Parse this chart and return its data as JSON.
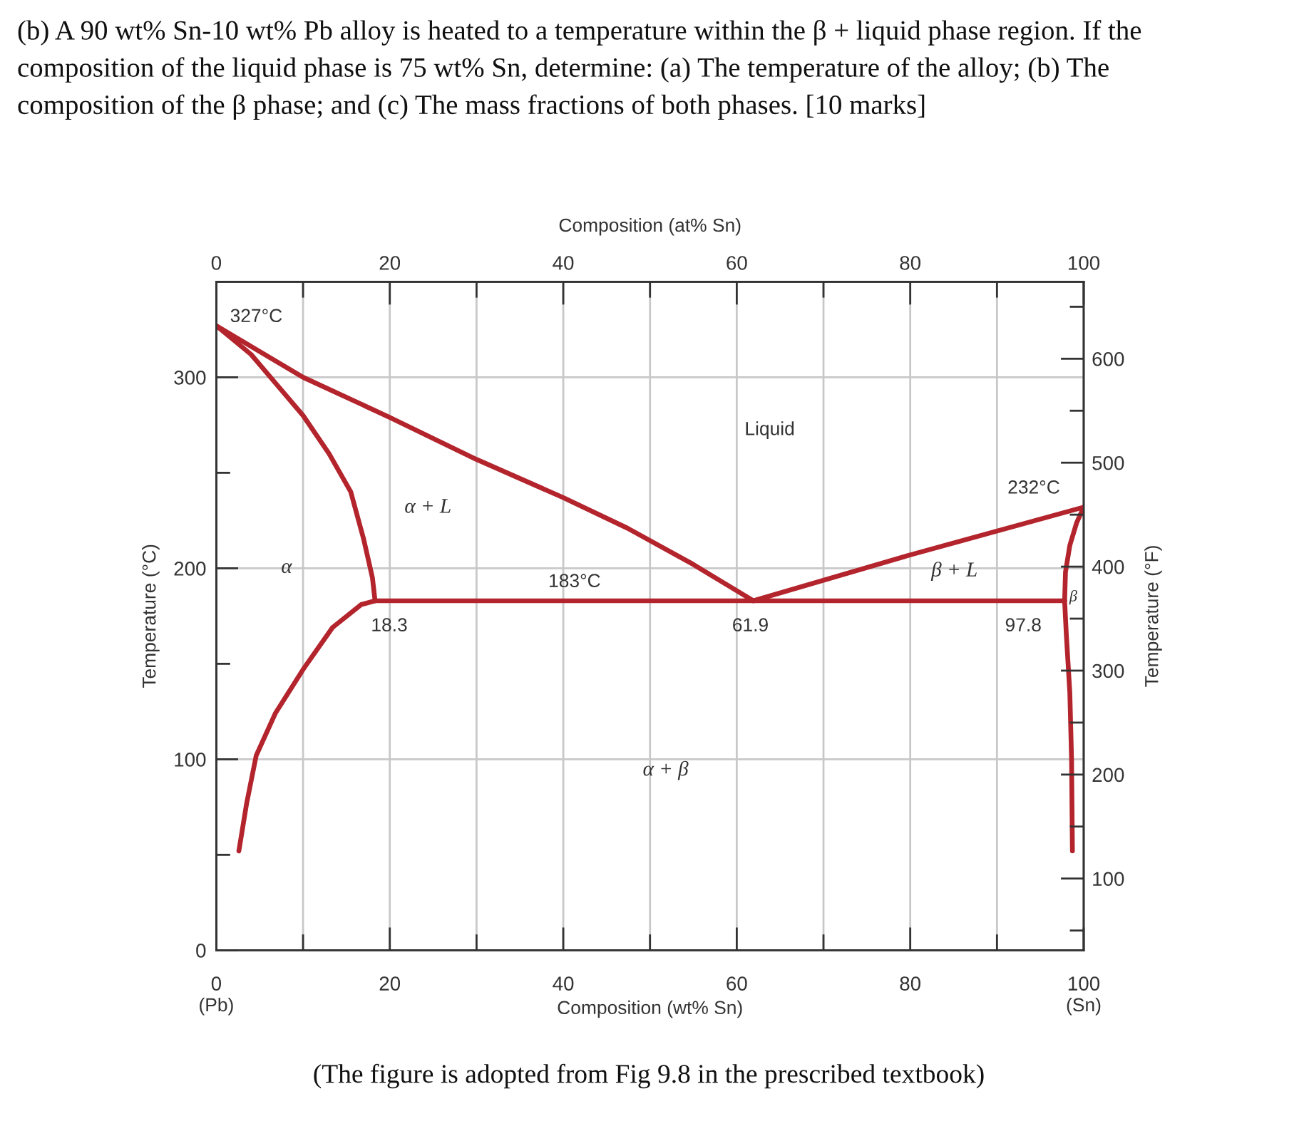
{
  "chart_data": {
    "type": "line",
    "title": "(b) A 90 wt% Sn-10 wt% Pb alloy is heated to a temperature within the β + liquid phase region. If the composition of the liquid phase is 75 wt% Sn, determine: (a) The temperature of the alloy; (b) The composition of the β phase; and (c) The mass fractions of both phases. [10 marks]",
    "xlabel": "Composition (wt% Sn)",
    "ylabel": "Temperature (°C)",
    "y2label": "Temperature (°F)",
    "x2label": "Composition (at% Sn)",
    "xlim": [
      0,
      100
    ],
    "xticks": [
      0,
      {
        "value": 10,
        "label": null
      },
      20,
      {
        "value": 30,
        "label": null
      },
      40,
      {
        "value": 50,
        "label": null
      },
      60,
      {
        "value": 70,
        "label": null
      },
      80,
      {
        "value": 90,
        "label": null
      },
      100
    ],
    "ylim": [
      0,
      350
    ],
    "yticks": [
      0,
      {
        "value": 50,
        "label": null
      },
      100,
      {
        "value": 150,
        "label": null
      },
      200,
      {
        "value": 250,
        "label": null
      },
      300
    ],
    "y2lim": [
      31,
      674
    ],
    "y2ticks": [
      {
        "value": 50,
        "label": null
      },
      100,
      {
        "value": 150,
        "label": null
      },
      200,
      {
        "value": 250,
        "label": null
      },
      300,
      {
        "value": 350,
        "label": null
      },
      400,
      {
        "value": 450,
        "label": null
      },
      500,
      {
        "value": 550,
        "label": null
      },
      600,
      {
        "value": 650,
        "label": null
      }
    ],
    "x2lim": [
      0,
      100
    ],
    "x2ticks": [
      0,
      {
        "value": 10,
        "label": null
      },
      20,
      {
        "value": 30,
        "label": null
      },
      40,
      {
        "value": 50,
        "label": null
      },
      60,
      {
        "value": 70,
        "label": null
      },
      80,
      {
        "value": 90,
        "label": null
      },
      100
    ],
    "grid": "x",
    "ref_lines": [
      {
        "axis": "y",
        "value": 100,
        "color": "#c8c8c8"
      },
      {
        "axis": "y",
        "value": 200,
        "color": "#c8c8c8"
      },
      {
        "axis": "y",
        "value": 300,
        "color": "#c8c8c8"
      }
    ],
    "series": [
      {
        "color": "#b3242c",
        "x": [
          0,
          10,
          20,
          30,
          40,
          47.4,
          55,
          61.9
        ],
        "values": [
          327,
          300,
          279,
          257,
          237,
          221,
          202,
          183
        ]
      },
      {
        "color": "#b3242c",
        "x": [
          61.9,
          80,
          100
        ],
        "values": [
          183,
          207,
          232
        ]
      },
      {
        "color": "#b3242c",
        "x": [
          0,
          4,
          7,
          10,
          13,
          15.5,
          17,
          18,
          18.3
        ],
        "values": [
          327,
          312,
          296,
          280,
          260,
          240,
          215,
          195,
          183
        ]
      },
      {
        "color": "#b3242c",
        "x": [
          18.3,
          16.7,
          13.4,
          10,
          6.8,
          4.6,
          3.5,
          2.6
        ],
        "values": [
          183,
          181,
          169,
          147,
          124,
          102,
          77,
          52
        ]
      },
      {
        "color": "#b3242c",
        "x": [
          18.3,
          97.8
        ],
        "values": [
          183,
          183
        ]
      },
      {
        "color": "#b3242c",
        "x": [
          100,
          99.2,
          98.4,
          97.9,
          97.8
        ],
        "values": [
          232,
          224,
          212,
          198,
          183
        ]
      },
      {
        "color": "#b3242c",
        "x": [
          97.8,
          98,
          98.4,
          98.6,
          98.7
        ],
        "values": [
          183,
          165,
          135,
          100,
          52
        ]
      }
    ],
    "annotations": [
      {
        "text": "327°C",
        "x": 0,
        "y": 327
      },
      {
        "text": "232°C",
        "x": 100,
        "y": 232
      },
      {
        "text": "183°C",
        "x": 41.3,
        "y": 183
      },
      {
        "text": "18.3",
        "x": 18.3,
        "y": 183
      },
      {
        "text": "61.9",
        "x": 61.9,
        "y": 183
      },
      {
        "text": "97.8",
        "x": 97.8,
        "y": 183
      },
      "Liquid",
      "α + L",
      "α",
      "β + L",
      "β",
      "α + β",
      "(Pb)",
      "(Sn)",
      "(The figure is adopted from Fig 9.8 in the prescribed textbook)"
    ]
  }
}
